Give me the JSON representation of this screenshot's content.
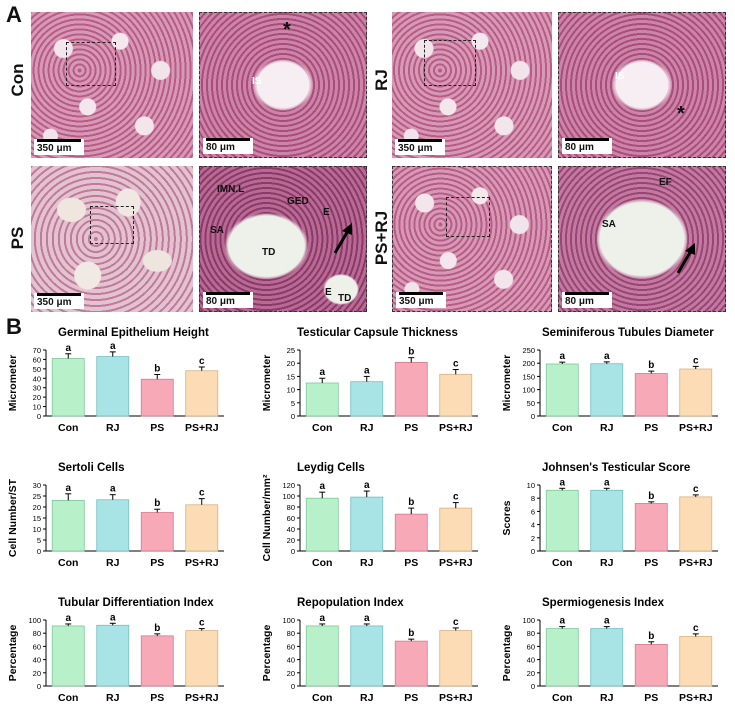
{
  "panel_a": {
    "letter": "A",
    "row_labels": [
      "Con",
      "RJ",
      "PS",
      "PS+RJ"
    ],
    "scale_low": "350 μm",
    "scale_high": "80 μm",
    "labels": {
      "con_is": "IS",
      "con_star": "*",
      "rj_is": "IS",
      "rj_star": "*",
      "ps_imnl": "IMN.L",
      "ps_ged": "GED",
      "ps_sa": "SA",
      "ps_td1": "TD",
      "ps_e1": "E",
      "ps_e2": "E",
      "ps_td2": "TD",
      "psrj_ef": "EF",
      "psrj_sa": "SA"
    }
  },
  "panel_b": {
    "letter": "B"
  },
  "chart_data": [
    {
      "type": "bar",
      "title": "Germinal Epithelium Height",
      "ylabel": "Micrometer",
      "categories": [
        "Con",
        "RJ",
        "PS",
        "PS+RJ"
      ],
      "values": [
        61,
        63,
        39,
        48
      ],
      "errors": [
        5,
        5,
        5,
        4
      ],
      "letters": [
        "a",
        "a",
        "b",
        "c"
      ],
      "ylim": [
        0,
        70
      ],
      "yticks": [
        0,
        10,
        20,
        30,
        40,
        50,
        60,
        70
      ]
    },
    {
      "type": "bar",
      "title": "Testicular Capsule Thickness",
      "ylabel": "Micrometer",
      "categories": [
        "Con",
        "RJ",
        "PS",
        "PS+RJ"
      ],
      "values": [
        12.5,
        13,
        20.3,
        15.8
      ],
      "errors": [
        1.8,
        2,
        1.8,
        1.8
      ],
      "letters": [
        "a",
        "a",
        "b",
        "c"
      ],
      "ylim": [
        0,
        25
      ],
      "yticks": [
        0,
        5,
        10,
        15,
        20,
        25
      ]
    },
    {
      "type": "bar",
      "title": "Seminiferous Tubules Diameter",
      "ylabel": "Micrometer",
      "categories": [
        "Con",
        "RJ",
        "PS",
        "PS+RJ"
      ],
      "values": [
        197,
        198,
        161,
        178
      ],
      "errors": [
        7,
        7,
        9,
        10
      ],
      "letters": [
        "a",
        "a",
        "b",
        "c"
      ],
      "ylim": [
        0,
        250
      ],
      "yticks": [
        0,
        50,
        100,
        150,
        200,
        250
      ]
    },
    {
      "type": "bar",
      "title": "Sertoli Cells",
      "ylabel": "Cell Number/ST",
      "categories": [
        "Con",
        "RJ",
        "PS",
        "PS+RJ"
      ],
      "values": [
        23,
        23.3,
        17.5,
        21
      ],
      "errors": [
        3,
        2.3,
        1.5,
        2.8
      ],
      "letters": [
        "a",
        "a",
        "b",
        "c"
      ],
      "ylim": [
        0,
        30
      ],
      "yticks": [
        0,
        5,
        10,
        15,
        20,
        25,
        30
      ]
    },
    {
      "type": "bar",
      "title": "Leydig Cells",
      "ylabel": "Cell Number/mm²",
      "categories": [
        "Con",
        "RJ",
        "PS",
        "PS+RJ"
      ],
      "values": [
        96,
        98,
        67,
        78
      ],
      "errors": [
        11,
        11,
        11,
        10
      ],
      "letters": [
        "a",
        "a",
        "b",
        "c"
      ],
      "ylim": [
        0,
        120
      ],
      "yticks": [
        0,
        20,
        40,
        60,
        80,
        100,
        120
      ]
    },
    {
      "type": "bar",
      "title": "Johnsen's Testicular Score",
      "ylabel": "Scores",
      "categories": [
        "Con",
        "RJ",
        "PS",
        "PS+RJ"
      ],
      "values": [
        9.2,
        9.2,
        7.2,
        8.2
      ],
      "errors": [
        0.3,
        0.3,
        0.25,
        0.3
      ],
      "letters": [
        "a",
        "a",
        "b",
        "c"
      ],
      "ylim": [
        0,
        10
      ],
      "yticks": [
        0,
        2,
        4,
        6,
        8,
        10
      ]
    },
    {
      "type": "bar",
      "title": "Tubular Differentiation Index",
      "ylabel": "Percentage",
      "categories": [
        "Con",
        "RJ",
        "PS",
        "PS+RJ"
      ],
      "values": [
        91,
        92,
        76,
        84
      ],
      "errors": [
        3,
        3,
        3,
        3
      ],
      "letters": [
        "a",
        "a",
        "b",
        "c"
      ],
      "ylim": [
        0,
        100
      ],
      "yticks": [
        0,
        20,
        40,
        60,
        80,
        100
      ]
    },
    {
      "type": "bar",
      "title": "Repopulation Index",
      "ylabel": "Percentage",
      "categories": [
        "Con",
        "RJ",
        "PS",
        "PS+RJ"
      ],
      "values": [
        91,
        91,
        68,
        84
      ],
      "errors": [
        3,
        3,
        3,
        4
      ],
      "letters": [
        "a",
        "a",
        "b",
        "c"
      ],
      "ylim": [
        0,
        100
      ],
      "yticks": [
        0,
        20,
        40,
        60,
        80,
        100
      ]
    },
    {
      "type": "bar",
      "title": "Spermiogenesis Index",
      "ylabel": "Percentage",
      "categories": [
        "Con",
        "RJ",
        "PS",
        "PS+RJ"
      ],
      "values": [
        87,
        87,
        63,
        75
      ],
      "errors": [
        3,
        3,
        4,
        4
      ],
      "letters": [
        "a",
        "a",
        "b",
        "c"
      ],
      "ylim": [
        0,
        100
      ],
      "yticks": [
        0,
        20,
        40,
        60,
        80,
        100
      ]
    }
  ],
  "colors": {
    "bars": [
      "#b7f0c9",
      "#a8e3e6",
      "#f7a9b8",
      "#fbdcb4"
    ],
    "bar_edges": [
      "#7dc99a",
      "#72bec3",
      "#d9788d",
      "#d9b27f"
    ]
  }
}
